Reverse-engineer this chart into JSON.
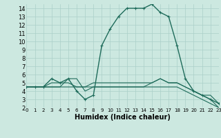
{
  "xlabel": "Humidex (Indice chaleur)",
  "bg_color": "#cce8e0",
  "line_color": "#1e6b5a",
  "grid_color": "#aacfc8",
  "series": [
    {
      "x": [
        0,
        1,
        2,
        3,
        4,
        5,
        6,
        7,
        8,
        9,
        10,
        11,
        12,
        13,
        14,
        15,
        16,
        17,
        18,
        19,
        20,
        21,
        22,
        23
      ],
      "y": [
        4.5,
        4.5,
        4.5,
        5.5,
        5.0,
        5.5,
        4.0,
        3.0,
        3.5,
        9.5,
        11.5,
        13.0,
        14.0,
        14.0,
        14.0,
        14.5,
        13.5,
        13.0,
        9.5,
        5.5,
        4.0,
        3.5,
        3.0,
        2.5
      ],
      "marker": "+",
      "lw": 1.0
    },
    {
      "x": [
        0,
        1,
        2,
        3,
        4,
        5,
        6,
        7,
        8,
        9,
        10,
        11,
        12,
        13,
        14,
        15,
        16,
        17,
        18,
        19,
        20,
        21,
        22,
        23
      ],
      "y": [
        4.5,
        4.5,
        4.5,
        4.5,
        4.5,
        4.5,
        4.5,
        4.5,
        4.5,
        4.5,
        4.5,
        4.5,
        4.5,
        4.5,
        4.5,
        4.5,
        4.5,
        4.5,
        4.5,
        4.0,
        3.5,
        3.0,
        2.5,
        2.0
      ],
      "marker": null,
      "lw": 0.8
    },
    {
      "x": [
        0,
        1,
        2,
        3,
        4,
        5,
        6,
        7,
        8,
        9,
        10,
        11,
        12,
        13,
        14,
        15,
        16,
        17,
        18,
        19,
        20,
        21,
        22,
        23
      ],
      "y": [
        4.5,
        4.5,
        4.5,
        4.5,
        4.5,
        5.5,
        5.5,
        4.0,
        4.5,
        4.5,
        4.5,
        4.5,
        4.5,
        4.5,
        4.5,
        5.0,
        5.5,
        5.0,
        5.0,
        4.5,
        4.0,
        3.5,
        3.0,
        2.0
      ],
      "marker": null,
      "lw": 0.8
    },
    {
      "x": [
        0,
        1,
        2,
        3,
        4,
        5,
        6,
        7,
        8,
        9,
        10,
        11,
        12,
        13,
        14,
        15,
        16,
        17,
        18,
        19,
        20,
        21,
        22,
        23
      ],
      "y": [
        4.5,
        4.5,
        4.5,
        5.0,
        5.0,
        5.0,
        4.5,
        4.5,
        5.0,
        5.0,
        5.0,
        5.0,
        5.0,
        5.0,
        5.0,
        5.0,
        5.5,
        5.0,
        5.0,
        4.5,
        4.0,
        3.5,
        3.5,
        2.5
      ],
      "marker": null,
      "lw": 0.8
    }
  ],
  "xlim": [
    0,
    23
  ],
  "ylim": [
    2,
    14.5
  ],
  "yticks": [
    2,
    3,
    4,
    5,
    6,
    7,
    8,
    9,
    10,
    11,
    12,
    13,
    14
  ],
  "xticks": [
    0,
    1,
    2,
    3,
    4,
    5,
    6,
    7,
    8,
    9,
    10,
    11,
    12,
    13,
    14,
    15,
    16,
    17,
    18,
    19,
    20,
    21,
    22,
    23
  ]
}
